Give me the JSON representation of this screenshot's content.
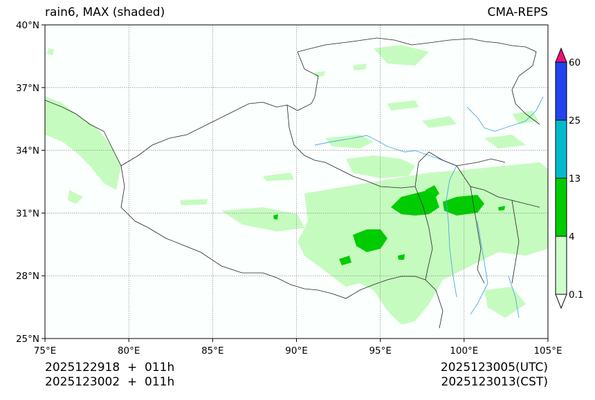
{
  "title_left": "rain6, MAX (shaded)",
  "title_right": "CMA-REPS",
  "lat_ticks": [
    "40°N",
    "37°N",
    "34°N",
    "31°N",
    "28°N",
    "25°N"
  ],
  "lon_ticks": [
    "75°E",
    "80°E",
    "85°E",
    "90°E",
    "95°E",
    "100°E",
    "105°E"
  ],
  "extent": {
    "lon_min": 75,
    "lon_max": 105,
    "lat_min": 25,
    "lat_max": 40
  },
  "colorbar": {
    "levels": [
      "0.1",
      "4",
      "13",
      "25",
      "60"
    ],
    "colors": [
      "#ccffcc",
      "#00cc00",
      "#00bbcc",
      "#2244ee"
    ],
    "under_color": "#ffffff",
    "over_color": "#e8137a"
  },
  "footer": {
    "init_time": "2025122918  +  011h",
    "init_time_cst": "2025123002  +  011h",
    "valid_utc": "2025123005(UTC)",
    "valid_cst": "2025123013(CST)"
  },
  "colors": {
    "light_green": "#c6fbc0",
    "green": "#00cc00",
    "river": "#4aa8e8",
    "border": "#222222"
  }
}
